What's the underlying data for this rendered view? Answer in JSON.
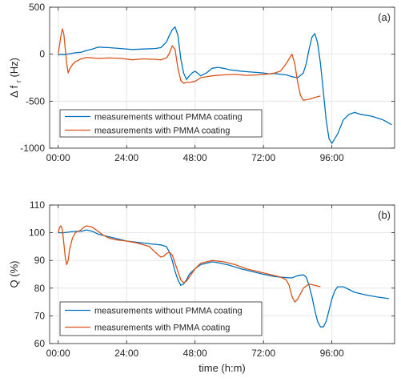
{
  "chart_data": [
    {
      "type": "line",
      "panel_label": "(a)",
      "xlabel": "",
      "ylabel": "Δ f r (Hz)",
      "ylabel_main": "Δ f",
      "ylabel_sub": "r",
      "ylabel_unit": "(Hz)",
      "xlim": [
        -3,
        118
      ],
      "ylim": [
        -1000,
        500
      ],
      "xticks": [
        0,
        24,
        48,
        72,
        96
      ],
      "xticklabels": [
        "00:00",
        "24:00",
        "48:00",
        "72:00",
        "96:00"
      ],
      "yticks": [
        -1000,
        -500,
        0,
        500
      ],
      "yticklabels": [
        "-1000",
        "-500",
        "0",
        "500"
      ],
      "grid": true,
      "legend_position": "bottom-left",
      "series": [
        {
          "name": "measurements without PMMA coating",
          "color": "#0072BD",
          "x": [
            0,
            1,
            2,
            3,
            4,
            6,
            8,
            10,
            12,
            14,
            18,
            22,
            26,
            30,
            34,
            36,
            38,
            39,
            40,
            41,
            42,
            43,
            44,
            45,
            46,
            47,
            48,
            50,
            52,
            54,
            56,
            58,
            60,
            64,
            68,
            72,
            74,
            76,
            78,
            80,
            82,
            84,
            86,
            87,
            88,
            89,
            90,
            91,
            92,
            93,
            94,
            95,
            96,
            97,
            98,
            100,
            102,
            104,
            106,
            110,
            114,
            117
          ],
          "y": [
            -10,
            0,
            -5,
            0,
            5,
            15,
            20,
            40,
            55,
            75,
            70,
            60,
            50,
            55,
            60,
            70,
            130,
            200,
            260,
            290,
            200,
            -50,
            -200,
            -270,
            -230,
            -200,
            -180,
            -230,
            -200,
            -150,
            -140,
            -150,
            -165,
            -180,
            -190,
            -200,
            -210,
            -205,
            -215,
            -220,
            -240,
            -250,
            -200,
            -100,
            50,
            180,
            220,
            120,
            -100,
            -400,
            -700,
            -900,
            -950,
            -900,
            -850,
            -700,
            -640,
            -620,
            -640,
            -660,
            -700,
            -750
          ]
        },
        {
          "name": "measurements with PMMA coating",
          "color": "#D95319",
          "x": [
            0,
            0.5,
            1,
            1.5,
            2,
            2.5,
            3,
            3.5,
            4,
            5,
            6,
            8,
            10,
            14,
            18,
            22,
            26,
            30,
            34,
            36,
            38,
            39,
            40,
            41,
            42,
            43,
            44,
            45,
            46,
            48,
            50,
            54,
            58,
            62,
            66,
            70,
            74,
            76,
            78,
            80,
            81,
            82,
            83,
            84,
            85,
            86,
            88,
            90,
            92
          ],
          "y": [
            0,
            100,
            200,
            270,
            210,
            50,
            -100,
            -200,
            -160,
            -110,
            -80,
            -50,
            -35,
            -45,
            -40,
            -45,
            -60,
            -50,
            -55,
            -60,
            -40,
            10,
            90,
            50,
            -150,
            -280,
            -310,
            -300,
            -300,
            -290,
            -250,
            -230,
            -220,
            -215,
            -225,
            -220,
            -210,
            -200,
            -180,
            -100,
            -50,
            0,
            -100,
            -300,
            -440,
            -490,
            -480,
            -460,
            -445
          ]
        }
      ]
    },
    {
      "type": "line",
      "panel_label": "(b)",
      "xlabel": "time (h:m)",
      "ylabel": "Q (%)",
      "xlim": [
        -3,
        118
      ],
      "ylim": [
        60,
        110
      ],
      "xticks": [
        0,
        24,
        48,
        72,
        96
      ],
      "xticklabels": [
        "00:00",
        "24:00",
        "48:00",
        "72:00",
        "96:00"
      ],
      "yticks": [
        60,
        70,
        80,
        90,
        100,
        110
      ],
      "yticklabels": [
        "60",
        "70",
        "80",
        "90",
        "100",
        "110"
      ],
      "grid": true,
      "legend_position": "bottom-left",
      "series": [
        {
          "name": "measurements without PMMA coating",
          "color": "#0072BD",
          "x": [
            0,
            2,
            4,
            6,
            8,
            10,
            12,
            14,
            16,
            20,
            24,
            28,
            32,
            34,
            36,
            38,
            39,
            40,
            41,
            42,
            43,
            44,
            45,
            46,
            48,
            50,
            52,
            54,
            56,
            60,
            64,
            68,
            72,
            76,
            80,
            82,
            84,
            86,
            87,
            88,
            89,
            90,
            91,
            92,
            93,
            94,
            95,
            96,
            97,
            98,
            100,
            102,
            104,
            108,
            112,
            116
          ],
          "y": [
            100,
            100,
            100.3,
            100.5,
            100.5,
            101,
            100.5,
            99.5,
            99,
            98,
            97,
            96.5,
            96,
            95.8,
            95.6,
            95,
            93,
            90,
            86,
            83,
            81,
            81.5,
            83,
            85,
            87,
            88.5,
            89,
            89.5,
            89.2,
            88.3,
            87,
            86,
            85,
            84.2,
            83.8,
            83.7,
            84.5,
            84.8,
            84,
            81,
            77,
            72,
            68,
            66,
            66,
            68,
            72,
            76,
            79,
            80.5,
            80.5,
            79.5,
            78.5,
            77.5,
            76.8,
            76.2
          ]
        },
        {
          "name": "measurements with PMMA coating",
          "color": "#D95319",
          "x": [
            0,
            0.5,
            1,
            1.5,
            2,
            2.5,
            3,
            3.5,
            4,
            5,
            6,
            7,
            8,
            9,
            10,
            12,
            14,
            16,
            18,
            20,
            24,
            28,
            32,
            34,
            36,
            37,
            38,
            39,
            40,
            41,
            42,
            43,
            44,
            45,
            46,
            48,
            50,
            54,
            58,
            62,
            66,
            70,
            74,
            78,
            80,
            81,
            82,
            83,
            84,
            85,
            86,
            88,
            90,
            92
          ],
          "y": [
            100,
            102,
            102.5,
            101,
            96,
            91,
            88.5,
            90,
            94,
            98,
            100,
            100.5,
            101,
            102,
            102.5,
            102,
            100.5,
            99,
            98,
            97.5,
            97,
            96.2,
            95,
            93,
            91.2,
            91.5,
            92.5,
            93,
            92,
            89,
            86,
            83,
            82,
            82.5,
            84,
            87,
            89,
            90,
            89.5,
            88.5,
            87,
            86,
            85,
            84,
            83,
            81,
            77,
            75,
            76,
            78,
            80,
            81.5,
            81,
            80.5
          ]
        }
      ]
    }
  ]
}
